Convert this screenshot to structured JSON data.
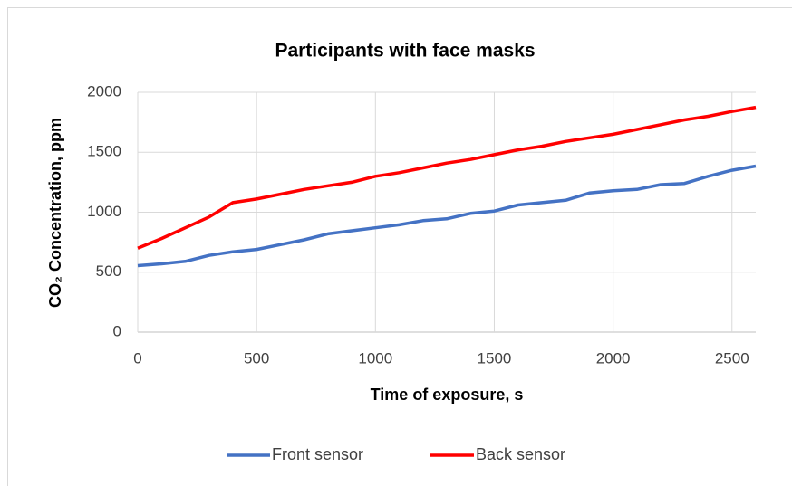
{
  "chart_data": {
    "type": "line",
    "title": "Participants with face masks",
    "x_label": "Time of exposure, s",
    "y_label": "CO₂ Concentration, ppm",
    "x": [
      0,
      100,
      200,
      300,
      400,
      500,
      600,
      700,
      800,
      900,
      1000,
      1100,
      1200,
      1300,
      1400,
      1500,
      1600,
      1700,
      1800,
      1900,
      2000,
      2100,
      2200,
      2300,
      2400,
      2500,
      2600
    ],
    "series": [
      {
        "name": "Front sensor",
        "color": "#4472c4",
        "values": [
          555,
          570,
          590,
          640,
          670,
          690,
          730,
          770,
          820,
          845,
          870,
          895,
          930,
          945,
          990,
          1010,
          1060,
          1080,
          1100,
          1160,
          1180,
          1190,
          1230,
          1240,
          1300,
          1350,
          1385
        ]
      },
      {
        "name": "Back sensor",
        "color": "#ff0000",
        "values": [
          700,
          780,
          870,
          960,
          1080,
          1110,
          1150,
          1190,
          1220,
          1250,
          1300,
          1330,
          1370,
          1410,
          1440,
          1480,
          1520,
          1550,
          1590,
          1620,
          1650,
          1690,
          1730,
          1770,
          1800,
          1840,
          1875
        ]
      }
    ],
    "xlim": [
      0,
      2600
    ],
    "xticks": [
      0,
      500,
      1000,
      1500,
      2000,
      2500
    ],
    "ylim": [
      0,
      2000
    ],
    "yticks": [
      0,
      500,
      1000,
      1500,
      2000
    ],
    "grid": true,
    "legend": "bottom"
  }
}
